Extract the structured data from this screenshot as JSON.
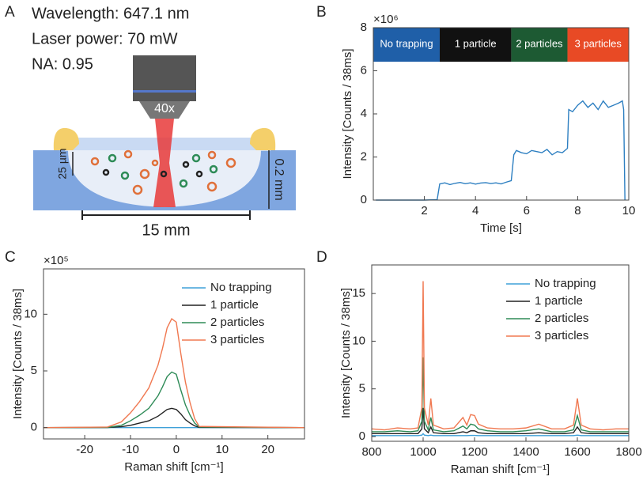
{
  "panel_labels": [
    "A",
    "B",
    "C",
    "D"
  ],
  "diagram": {
    "lines": [
      "Wavelength: 647.1 nm",
      "Laser power: 70 mW",
      "NA: 0.95"
    ],
    "objective": "40x",
    "depth_label": "25 µm",
    "thickness_label": "0.2 mm",
    "width_label": "15 mm"
  },
  "chart_data": [
    {
      "type": "line",
      "xlabel": "Time [s]",
      "ylabel": "Intensity [Counts / 38ms]",
      "y_multiplier": "×10⁶",
      "xlim": [
        0,
        10
      ],
      "ylim": [
        0,
        8
      ],
      "xticks": [
        2,
        4,
        6,
        8,
        10
      ],
      "yticks": [
        0,
        2,
        4,
        6,
        8
      ],
      "color": "#2d7fc1",
      "regions": [
        {
          "label": "No trapping",
          "start": 0,
          "end": 2.6,
          "color": "#1f5fa8"
        },
        {
          "label": "1 particle",
          "start": 2.6,
          "end": 5.4,
          "color": "#111111"
        },
        {
          "label": "2 particles",
          "start": 5.4,
          "end": 7.6,
          "color": "#1d5a33"
        },
        {
          "label": "3 particles",
          "start": 7.6,
          "end": 10,
          "color": "#e84a25"
        }
      ],
      "x": [
        0.1,
        0.5,
        1,
        1.5,
        2,
        2.5,
        2.6,
        2.8,
        3,
        3.2,
        3.4,
        3.6,
        3.8,
        4,
        4.2,
        4.4,
        4.6,
        4.8,
        5,
        5.2,
        5.4,
        5.5,
        5.6,
        5.8,
        6,
        6.2,
        6.4,
        6.6,
        6.8,
        7,
        7.2,
        7.4,
        7.6,
        7.65,
        7.8,
        8,
        8.2,
        8.4,
        8.6,
        8.8,
        9,
        9.2,
        9.4,
        9.6,
        9.75,
        9.8,
        9.85
      ],
      "values": [
        0,
        0,
        0,
        0,
        0,
        0.02,
        0.75,
        0.8,
        0.72,
        0.78,
        0.82,
        0.76,
        0.8,
        0.74,
        0.79,
        0.81,
        0.77,
        0.8,
        0.75,
        0.83,
        0.9,
        2.1,
        2.3,
        2.2,
        2.15,
        2.3,
        2.25,
        2.2,
        2.35,
        2.1,
        2.25,
        2.2,
        2.4,
        4.2,
        4.1,
        4.4,
        4.6,
        4.3,
        4.5,
        4.2,
        4.6,
        4.3,
        4.4,
        4.5,
        4.6,
        4.2,
        0
      ]
    },
    {
      "type": "line",
      "xlabel": "Raman shift [cm⁻¹]",
      "ylabel": "Intensity [Counts / 38ms]",
      "y_multiplier": "×10⁵",
      "xlim": [
        -29,
        28
      ],
      "ylim": [
        -1,
        14
      ],
      "xticks": [
        -20,
        -10,
        0,
        10,
        20
      ],
      "yticks": [
        0,
        5,
        10
      ],
      "legend": "upper right",
      "x": [
        -29,
        -15,
        -12,
        -10,
        -8,
        -6,
        -4,
        -3,
        -2,
        -1,
        0,
        1,
        2,
        3,
        4,
        5,
        28
      ],
      "series": [
        {
          "name": "No trapping",
          "color": "#3fa0d8",
          "values": [
            0,
            0,
            0,
            0,
            0,
            0,
            0,
            0,
            0,
            0,
            0,
            0,
            0,
            0,
            0,
            0,
            0
          ]
        },
        {
          "name": "1 particle",
          "color": "#222222",
          "values": [
            0,
            0.01,
            0.08,
            0.2,
            0.4,
            0.6,
            1,
            1.3,
            1.6,
            1.7,
            1.6,
            1.2,
            0.7,
            0.4,
            0.15,
            0.02,
            0
          ]
        },
        {
          "name": "2 particles",
          "color": "#2e8b57",
          "values": [
            0,
            0.02,
            0.2,
            0.6,
            1.1,
            1.7,
            2.8,
            3.6,
            4.5,
            4.9,
            4.7,
            3.3,
            2,
            1.1,
            0.4,
            0.05,
            0
          ]
        },
        {
          "name": "3 particles",
          "color": "#f07850",
          "values": [
            0,
            0.05,
            0.5,
            1.3,
            2.3,
            3.5,
            5.5,
            7,
            8.8,
            9.6,
            9.3,
            6.5,
            4,
            2.2,
            0.8,
            0.1,
            0
          ]
        }
      ]
    },
    {
      "type": "line",
      "xlabel": "Raman shift [cm⁻¹]",
      "ylabel": "Intensity [Counts / 38ms]",
      "xlim": [
        800,
        1800
      ],
      "ylim": [
        -0.5,
        18
      ],
      "xticks": [
        800,
        1000,
        1200,
        1400,
        1600,
        1800
      ],
      "yticks": [
        0,
        5,
        10,
        15
      ],
      "legend": "upper right",
      "x": [
        800,
        850,
        900,
        950,
        980,
        995,
        1000,
        1005,
        1020,
        1030,
        1040,
        1080,
        1120,
        1155,
        1170,
        1185,
        1200,
        1215,
        1250,
        1300,
        1350,
        1400,
        1450,
        1500,
        1550,
        1585,
        1600,
        1615,
        1650,
        1700,
        1750,
        1800
      ],
      "series": [
        {
          "name": "No trapping",
          "color": "#3fa0d8",
          "values": [
            0.1,
            0.1,
            0.1,
            0.1,
            0.1,
            0.15,
            0.3,
            0.15,
            0.1,
            0.15,
            0.1,
            0.1,
            0.1,
            0.1,
            0.1,
            0.12,
            0.12,
            0.1,
            0.1,
            0.1,
            0.1,
            0.1,
            0.1,
            0.1,
            0.1,
            0.1,
            0.15,
            0.1,
            0.1,
            0.1,
            0.1,
            0.1
          ]
        },
        {
          "name": "1 particle",
          "color": "#222222",
          "values": [
            0.3,
            0.3,
            0.3,
            0.3,
            0.3,
            0.8,
            3,
            0.8,
            0.4,
            1,
            0.4,
            0.3,
            0.3,
            0.5,
            0.4,
            0.6,
            0.6,
            0.4,
            0.3,
            0.3,
            0.3,
            0.3,
            0.4,
            0.3,
            0.3,
            0.4,
            1,
            0.4,
            0.3,
            0.3,
            0.3,
            0.3
          ]
        },
        {
          "name": "2 particles",
          "color": "#2e8b57",
          "values": [
            0.5,
            0.5,
            0.6,
            0.5,
            0.6,
            1.6,
            8.3,
            1.6,
            0.7,
            2,
            0.7,
            0.5,
            0.6,
            1.1,
            0.8,
            1.3,
            1.2,
            0.8,
            0.6,
            0.5,
            0.5,
            0.6,
            0.8,
            0.5,
            0.5,
            0.7,
            2.2,
            0.7,
            0.5,
            0.5,
            0.5,
            0.5
          ]
        },
        {
          "name": "3 particles",
          "color": "#f07850",
          "values": [
            0.8,
            0.7,
            0.9,
            0.8,
            0.9,
            3,
            16.3,
            3,
            1.2,
            4,
            1.2,
            0.8,
            0.9,
            2,
            1.2,
            2.3,
            2.2,
            1.3,
            0.9,
            0.8,
            0.8,
            0.9,
            1.3,
            0.8,
            0.8,
            1.2,
            4,
            1.2,
            0.8,
            0.7,
            0.8,
            0.8
          ]
        }
      ]
    }
  ]
}
